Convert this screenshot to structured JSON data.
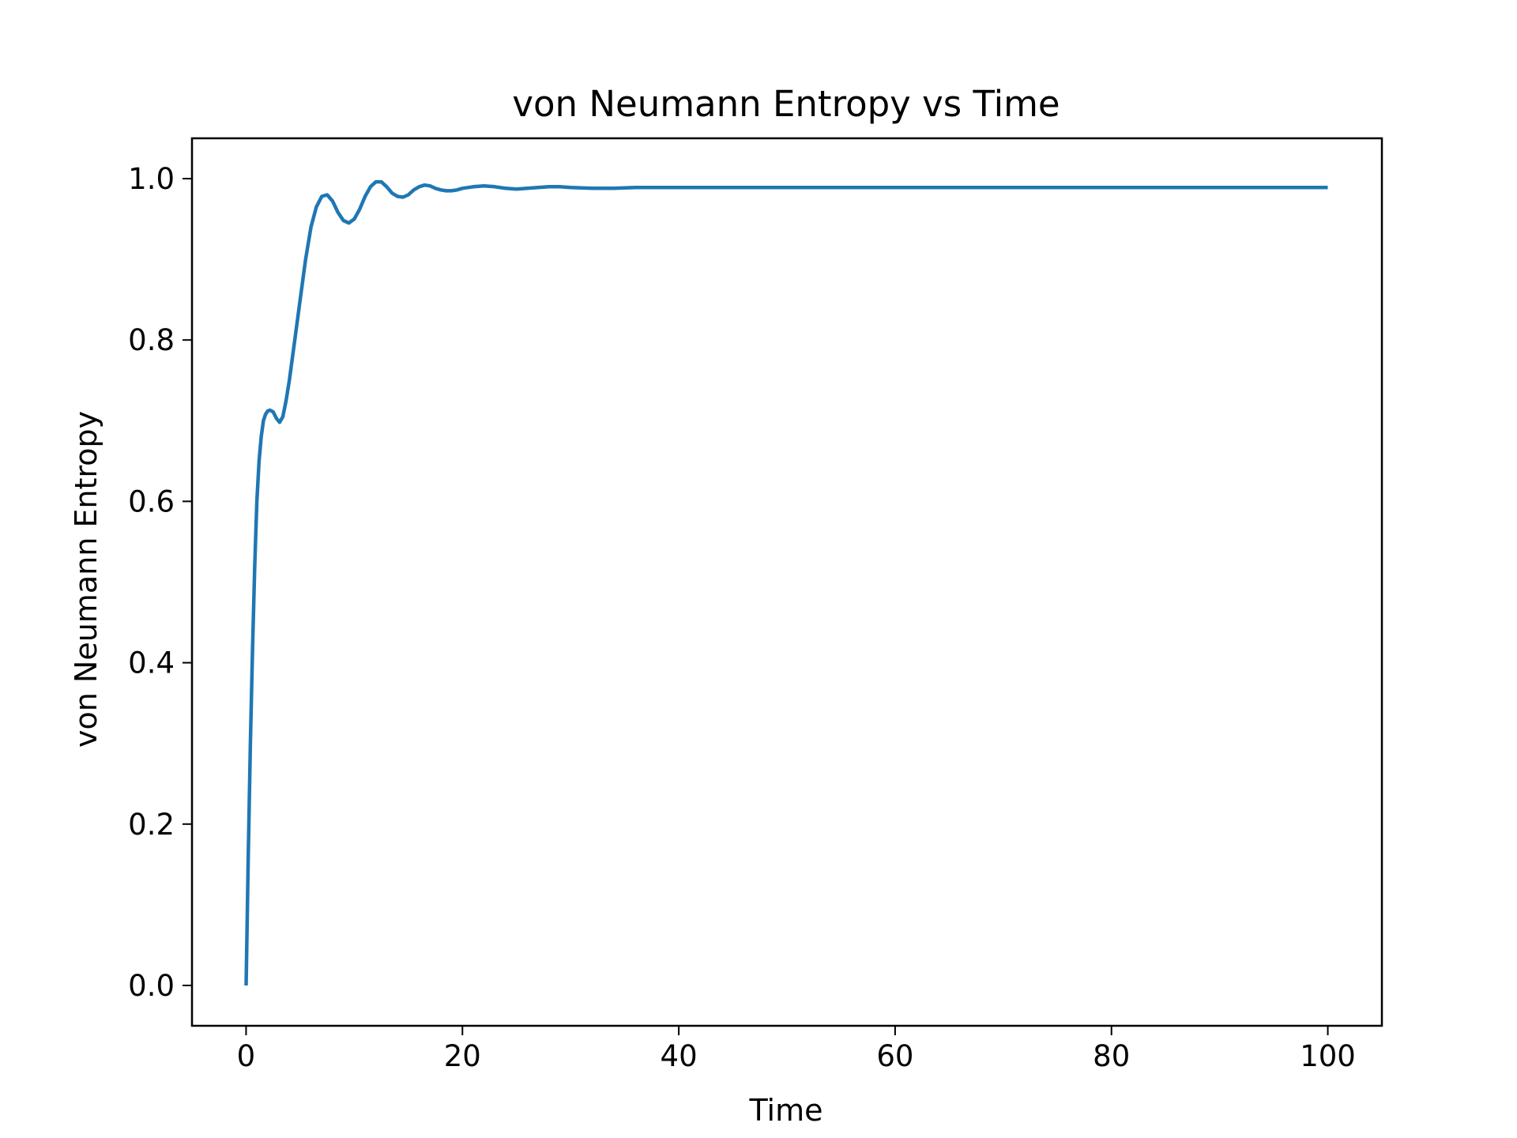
{
  "chart_data": {
    "type": "line",
    "title": "von Neumann Entropy vs Time",
    "xlabel": "Time",
    "ylabel": "von Neumann Entropy",
    "xlim": [
      -5,
      105
    ],
    "ylim": [
      -0.05,
      1.05
    ],
    "x_ticks": [
      0,
      20,
      40,
      60,
      80,
      100
    ],
    "x_tick_labels": [
      "0",
      "20",
      "40",
      "60",
      "80",
      "100"
    ],
    "y_ticks": [
      0.0,
      0.2,
      0.4,
      0.6,
      0.8,
      1.0
    ],
    "y_tick_labels": [
      "0.0",
      "0.2",
      "0.4",
      "0.6",
      "0.8",
      "1.0"
    ],
    "grid": false,
    "legend": "none",
    "series": [
      {
        "color": "#1f77b4",
        "x": [
          0,
          0.2,
          0.4,
          0.6,
          0.8,
          1.0,
          1.2,
          1.4,
          1.6,
          1.8,
          2.0,
          2.2,
          2.5,
          2.8,
          3.1,
          3.4,
          3.7,
          4.0,
          4.5,
          5.0,
          5.5,
          6.0,
          6.5,
          7.0,
          7.5,
          8.0,
          8.5,
          9.0,
          9.5,
          10.0,
          10.5,
          11.0,
          11.5,
          12.0,
          12.5,
          13.0,
          13.5,
          14.0,
          14.5,
          15.0,
          15.5,
          16.0,
          16.5,
          17.0,
          17.5,
          18.0,
          18.5,
          19.0,
          19.5,
          20.0,
          21.0,
          22.0,
          23.0,
          24.0,
          25.0,
          26.0,
          27.0,
          28.0,
          29.0,
          30.0,
          32.0,
          34.0,
          36.0,
          38.0,
          40.0,
          45.0,
          50.0,
          60.0,
          70.0,
          80.0,
          90.0,
          100.0
        ],
        "y": [
          0.0,
          0.16,
          0.3,
          0.42,
          0.52,
          0.6,
          0.65,
          0.68,
          0.7,
          0.708,
          0.712,
          0.713,
          0.711,
          0.703,
          0.698,
          0.705,
          0.725,
          0.75,
          0.8,
          0.85,
          0.9,
          0.94,
          0.965,
          0.978,
          0.98,
          0.972,
          0.958,
          0.948,
          0.945,
          0.95,
          0.962,
          0.978,
          0.99,
          0.996,
          0.996,
          0.99,
          0.982,
          0.978,
          0.977,
          0.98,
          0.986,
          0.99,
          0.992,
          0.991,
          0.988,
          0.986,
          0.985,
          0.985,
          0.986,
          0.988,
          0.99,
          0.991,
          0.99,
          0.988,
          0.987,
          0.988,
          0.989,
          0.99,
          0.99,
          0.989,
          0.988,
          0.988,
          0.989,
          0.989,
          0.989,
          0.989,
          0.989,
          0.989,
          0.989,
          0.989,
          0.989,
          0.989
        ]
      }
    ]
  }
}
